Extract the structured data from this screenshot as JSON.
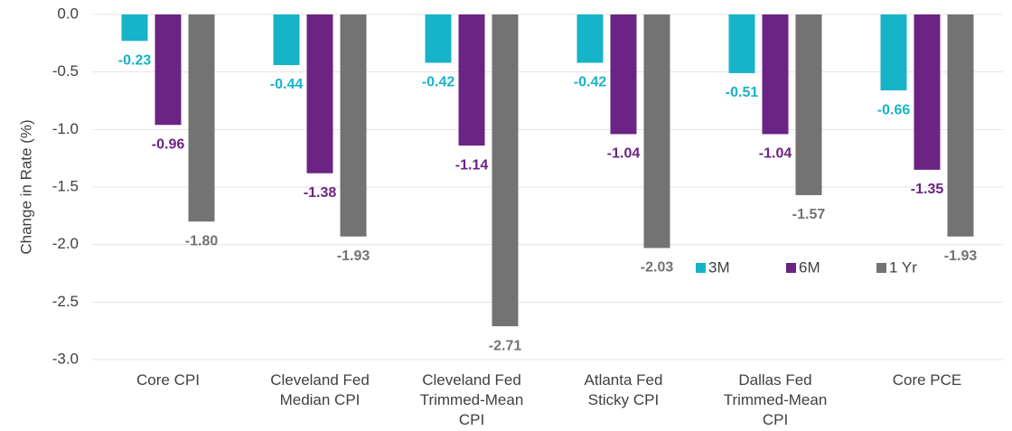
{
  "chart_data": {
    "type": "bar",
    "y_label": "Change in Rate (%)",
    "categories": [
      "Core CPI",
      "Cleveland Fed\nMedian CPI",
      "Cleveland Fed\nTrimmed-Mean\nCPI",
      "Atlanta Fed\nSticky CPI",
      "Dallas Fed\nTrimmed-Mean\nCPI",
      "Core PCE"
    ],
    "series": [
      {
        "name": "3M",
        "color": "#17b3c9",
        "values": [
          -0.23,
          -0.44,
          -0.42,
          -0.42,
          -0.51,
          -0.66
        ],
        "value_labels": [
          "-0.23",
          "-0.44",
          "-0.42",
          "-0.42",
          "-0.51",
          "-0.66"
        ]
      },
      {
        "name": "6M",
        "color": "#6b2384",
        "values": [
          -0.96,
          -1.38,
          -1.14,
          -1.04,
          -1.04,
          -1.35
        ],
        "value_labels": [
          "-0.96",
          "-1.38",
          "-1.14",
          "-1.04",
          "-1.04",
          "-1.35"
        ]
      },
      {
        "name": "1 Yr",
        "color": "#737373",
        "values": [
          -1.8,
          -1.93,
          -2.71,
          -2.03,
          -1.57,
          -1.93
        ],
        "value_labels": [
          "-1.80",
          "-1.93",
          "-2.71",
          "-2.03",
          "-1.57",
          "-1.93"
        ]
      }
    ],
    "ylim": [
      -3,
      0
    ],
    "yticks": [
      {
        "value": 0,
        "label": "0.0"
      },
      -0.5,
      {
        "value": -1,
        "label": "-1.0"
      },
      -1.5,
      {
        "value": -2,
        "label": "-2.0"
      },
      -2.5,
      {
        "value": -3,
        "label": "-3.0"
      }
    ],
    "grid": true
  }
}
